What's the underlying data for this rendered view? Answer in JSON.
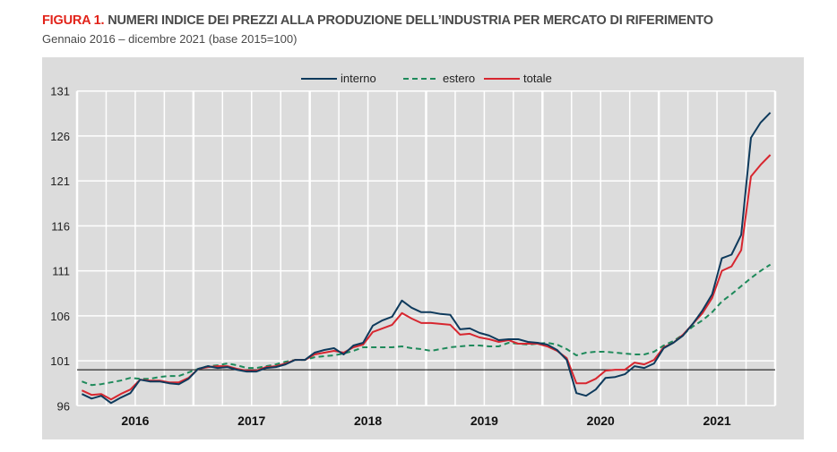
{
  "header": {
    "figure_label": "FIGURA 1.",
    "title": "NUMERI INDICE DEI PREZZI ALLA PRODUZIONE DELL’INDUSTRIA PER MERCATO DI RIFERIMENTO",
    "subtitle": "Gennaio 2016 –  dicembre 2021 (base 2015=100)"
  },
  "chart_data": {
    "type": "line",
    "title": "NUMERI INDICE DEI PREZZI ALLA PRODUZIONE DELL’INDUSTRIA PER MERCATO DI RIFERIMENTO",
    "subtitle": "Gennaio 2016 –  dicembre 2021 (base 2015=100)",
    "x_start": "2016-01",
    "x_end": "2021-12",
    "frequency": "monthly",
    "x_tick_labels": [
      "2016",
      "2017",
      "2018",
      "2019",
      "2020",
      "2021"
    ],
    "ylim": [
      96,
      131
    ],
    "y_ticks": [
      96,
      101,
      106,
      111,
      116,
      121,
      126,
      131
    ],
    "reference_line": 100,
    "grid": true,
    "legend_position": "top",
    "colors": {
      "interno": "#0e3a5c",
      "estero": "#1f8a5b",
      "totale": "#d7262f"
    },
    "series": [
      {
        "name": "interno",
        "style": "solid",
        "values": [
          97.3,
          96.8,
          97.1,
          96.3,
          96.9,
          97.4,
          98.9,
          98.7,
          98.7,
          98.5,
          98.4,
          99.0,
          100.1,
          100.4,
          100.2,
          100.3,
          100.0,
          99.8,
          99.8,
          100.2,
          100.3,
          100.6,
          101.1,
          101.1,
          101.9,
          102.2,
          102.4,
          101.7,
          102.7,
          103.0,
          104.9,
          105.5,
          105.9,
          107.7,
          106.9,
          106.4,
          106.4,
          106.2,
          106.1,
          104.5,
          104.6,
          104.1,
          103.8,
          103.3,
          103.4,
          103.4,
          103.1,
          103.0,
          102.8,
          102.2,
          101.1,
          97.4,
          97.1,
          97.8,
          99.1,
          99.2,
          99.5,
          100.4,
          100.2,
          100.7,
          102.4,
          103.0,
          103.8,
          105.1,
          106.6,
          108.4,
          112.4,
          112.8,
          115.0,
          125.8,
          127.5,
          128.6
        ]
      },
      {
        "name": "estero",
        "style": "dashed",
        "values": [
          98.7,
          98.3,
          98.4,
          98.6,
          98.8,
          99.1,
          99.0,
          99.0,
          99.2,
          99.3,
          99.3,
          99.7,
          100.1,
          100.4,
          100.5,
          100.7,
          100.5,
          100.2,
          100.2,
          100.4,
          100.6,
          100.9,
          101.1,
          101.1,
          101.4,
          101.5,
          101.6,
          101.8,
          102.1,
          102.5,
          102.5,
          102.5,
          102.5,
          102.6,
          102.4,
          102.3,
          102.1,
          102.3,
          102.5,
          102.6,
          102.7,
          102.7,
          102.6,
          102.6,
          103.0,
          102.9,
          102.8,
          102.9,
          103.0,
          102.8,
          102.3,
          101.6,
          101.9,
          102.0,
          102.0,
          101.9,
          101.8,
          101.7,
          101.7,
          102.0,
          102.7,
          103.2,
          103.9,
          104.8,
          105.5,
          106.4,
          107.6,
          108.4,
          109.3,
          110.2,
          111.0,
          111.7
        ]
      },
      {
        "name": "totale",
        "style": "solid",
        "values": [
          97.7,
          97.2,
          97.3,
          96.7,
          97.3,
          97.8,
          98.9,
          98.8,
          98.8,
          98.6,
          98.6,
          99.1,
          100.1,
          100.3,
          100.4,
          100.4,
          100.1,
          99.9,
          99.9,
          100.3,
          100.4,
          100.7,
          101.1,
          101.1,
          101.7,
          101.9,
          102.1,
          101.9,
          102.5,
          102.8,
          104.2,
          104.6,
          105.0,
          106.3,
          105.7,
          105.2,
          105.2,
          105.1,
          105.0,
          103.9,
          104.0,
          103.6,
          103.4,
          103.1,
          103.3,
          102.9,
          102.9,
          102.9,
          102.6,
          102.1,
          101.3,
          98.5,
          98.5,
          99.0,
          99.9,
          100.0,
          100.0,
          100.8,
          100.6,
          101.1,
          102.5,
          103.0,
          103.9,
          105.1,
          106.3,
          108.0,
          111.0,
          111.5,
          113.3,
          121.5,
          122.8,
          123.9
        ]
      }
    ]
  }
}
